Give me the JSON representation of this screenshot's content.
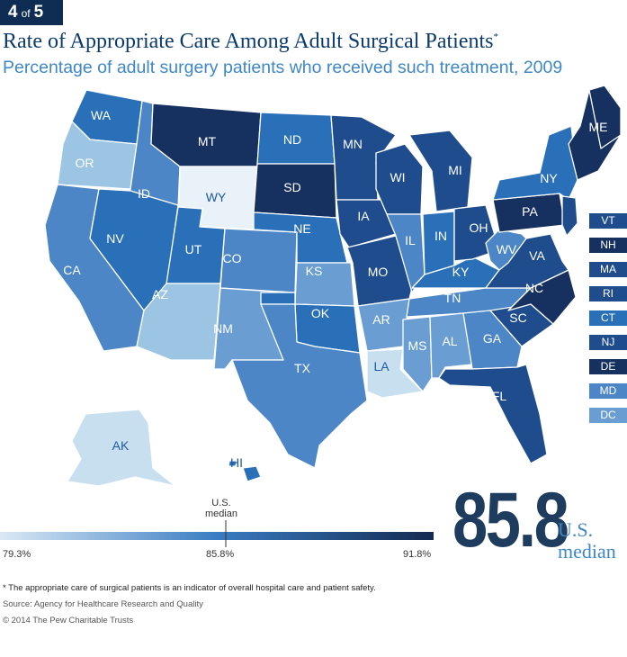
{
  "badge": {
    "current": "4",
    "of": "of",
    "total": "5"
  },
  "title": "Rate of Appropriate Care Among Adult Surgical Patients",
  "title_mark": "*",
  "subtitle": "Percentage of adult surgery patients who received such treatment, 2009",
  "colors": {
    "lightest": "#c8dff0",
    "light": "#9cc5e3",
    "mid_light": "#6a9ed3",
    "mid": "#4c86c6",
    "mid_dark": "#2a70b8",
    "dark": "#1e4c8c",
    "darkest": "#16305f",
    "white": "#eaf2f9"
  },
  "legend": {
    "min_label": "79.3%",
    "median_label": "85.8%",
    "max_label": "91.8%",
    "median_title_line1": "U.S.",
    "median_title_line2": "median",
    "min": 79.3,
    "median": 85.8,
    "max": 91.8
  },
  "headline": {
    "value": "85.8",
    "caption_line1": "U.S.",
    "caption_line2": "median"
  },
  "small_states": [
    {
      "abbr": "VT",
      "shade": "dark"
    },
    {
      "abbr": "NH",
      "shade": "darkest"
    },
    {
      "abbr": "MA",
      "shade": "dark"
    },
    {
      "abbr": "RI",
      "shade": "dark"
    },
    {
      "abbr": "CT",
      "shade": "mid_dark"
    },
    {
      "abbr": "NJ",
      "shade": "dark"
    },
    {
      "abbr": "DE",
      "shade": "darkest"
    },
    {
      "abbr": "MD",
      "shade": "mid"
    },
    {
      "abbr": "DC",
      "shade": "mid_light"
    }
  ],
  "states": [
    {
      "abbr": "WA",
      "shade": "mid_dark"
    },
    {
      "abbr": "OR",
      "shade": "light"
    },
    {
      "abbr": "CA",
      "shade": "mid"
    },
    {
      "abbr": "ID",
      "shade": "mid"
    },
    {
      "abbr": "NV",
      "shade": "mid_dark"
    },
    {
      "abbr": "MT",
      "shade": "darkest"
    },
    {
      "abbr": "WY",
      "shade": "white"
    },
    {
      "abbr": "UT",
      "shade": "mid_dark"
    },
    {
      "abbr": "AZ",
      "shade": "light"
    },
    {
      "abbr": "CO",
      "shade": "mid"
    },
    {
      "abbr": "NM",
      "shade": "mid_light"
    },
    {
      "abbr": "ND",
      "shade": "mid_dark"
    },
    {
      "abbr": "SD",
      "shade": "darkest"
    },
    {
      "abbr": "NE",
      "shade": "mid_dark"
    },
    {
      "abbr": "KS",
      "shade": "mid_light"
    },
    {
      "abbr": "OK",
      "shade": "mid_dark"
    },
    {
      "abbr": "TX",
      "shade": "mid"
    },
    {
      "abbr": "MN",
      "shade": "dark"
    },
    {
      "abbr": "IA",
      "shade": "dark"
    },
    {
      "abbr": "MO",
      "shade": "dark"
    },
    {
      "abbr": "AR",
      "shade": "mid_light"
    },
    {
      "abbr": "LA",
      "shade": "lightest"
    },
    {
      "abbr": "WI",
      "shade": "dark"
    },
    {
      "abbr": "IL",
      "shade": "mid"
    },
    {
      "abbr": "MS",
      "shade": "mid_light"
    },
    {
      "abbr": "MI",
      "shade": "dark"
    },
    {
      "abbr": "IN",
      "shade": "mid_dark"
    },
    {
      "abbr": "KY",
      "shade": "mid_dark"
    },
    {
      "abbr": "TN",
      "shade": "mid"
    },
    {
      "abbr": "AL",
      "shade": "mid_light"
    },
    {
      "abbr": "OH",
      "shade": "dark"
    },
    {
      "abbr": "GA",
      "shade": "mid"
    },
    {
      "abbr": "FL",
      "shade": "dark"
    },
    {
      "abbr": "SC",
      "shade": "dark"
    },
    {
      "abbr": "NC",
      "shade": "darkest"
    },
    {
      "abbr": "VA",
      "shade": "dark"
    },
    {
      "abbr": "WV",
      "shade": "mid"
    },
    {
      "abbr": "PA",
      "shade": "darkest"
    },
    {
      "abbr": "NY",
      "shade": "mid_dark"
    },
    {
      "abbr": "ME",
      "shade": "darkest"
    },
    {
      "abbr": "AK",
      "shade": "lightest"
    },
    {
      "abbr": "HI",
      "shade": "mid_dark"
    }
  ],
  "footnote": "* The appropriate care of surgical patients is an indicator of overall hospital care and patient safety.",
  "source": "Source: Agency for Healthcare Research and Quality",
  "copyright": "© 2014 The Pew Charitable Trusts"
}
